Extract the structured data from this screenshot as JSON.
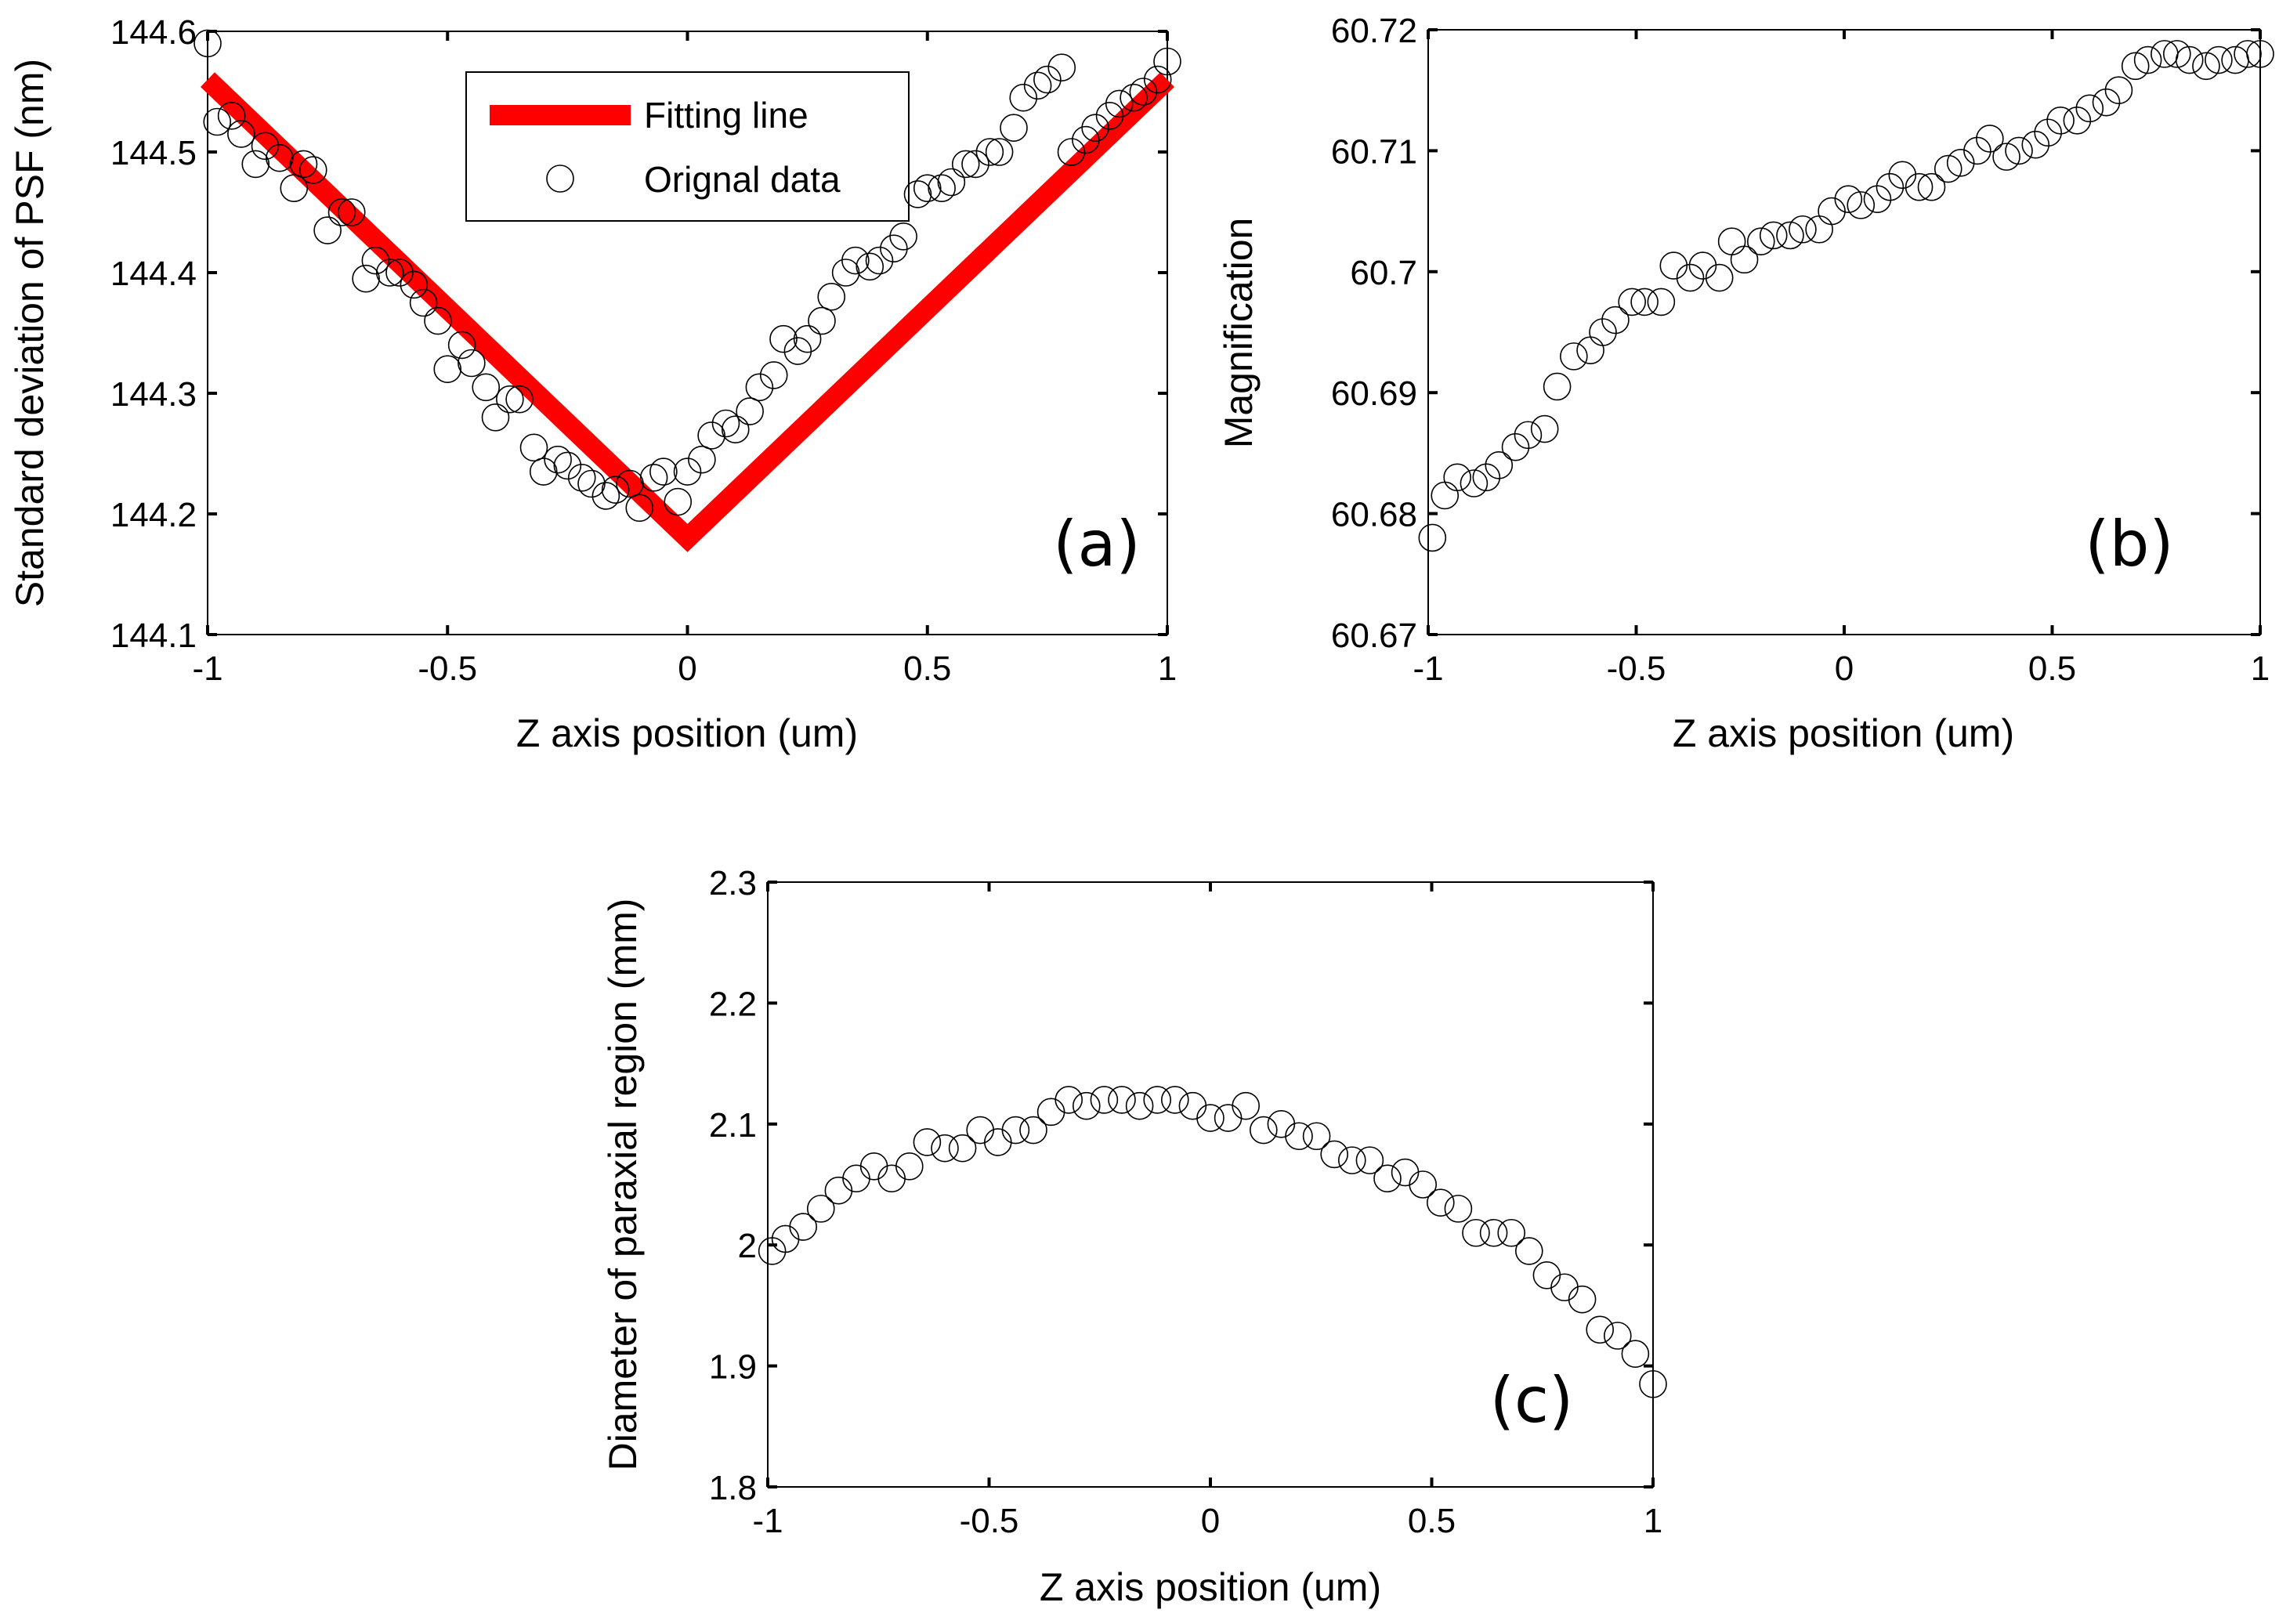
{
  "chart_data": [
    {
      "type": "line+scatter",
      "panel_label": "(a)",
      "xlabel": "Z axis position (um)",
      "ylabel": "Standard deviation of PSF (nm)",
      "xlim": [
        -1,
        1
      ],
      "ylim": [
        144.1,
        144.6
      ],
      "xticks": [
        -1,
        -0.5,
        0,
        0.5,
        1
      ],
      "xtick_labels": [
        "-1",
        "-0.5",
        "0",
        "0.5",
        "1"
      ],
      "yticks": [
        144.1,
        144.2,
        144.3,
        144.4,
        144.5,
        144.6
      ],
      "ytick_labels": [
        "144.1",
        "144.2",
        "144.3",
        "144.4",
        "144.5",
        "144.6"
      ],
      "legend": {
        "position": "top",
        "entries": [
          "Fitting line",
          "Orignal data"
        ]
      },
      "series": [
        {
          "name": "Fitting line",
          "kind": "line",
          "color": "#ff0000",
          "x": [
            -1,
            0,
            1
          ],
          "y": [
            144.56,
            144.18,
            144.56
          ]
        },
        {
          "name": "Orignal data",
          "kind": "scatter",
          "marker": "open-circle",
          "x": [
            -1.0,
            -0.98,
            -0.95,
            -0.93,
            -0.9,
            -0.88,
            -0.85,
            -0.82,
            -0.8,
            -0.78,
            -0.75,
            -0.72,
            -0.7,
            -0.67,
            -0.65,
            -0.62,
            -0.6,
            -0.57,
            -0.55,
            -0.52,
            -0.5,
            -0.47,
            -0.45,
            -0.42,
            -0.4,
            -0.37,
            -0.35,
            -0.32,
            -0.3,
            -0.27,
            -0.25,
            -0.22,
            -0.2,
            -0.17,
            -0.15,
            -0.12,
            -0.1,
            -0.07,
            -0.05,
            -0.02,
            0.0,
            0.03,
            0.05,
            0.08,
            0.1,
            0.13,
            0.15,
            0.18,
            0.2,
            0.23,
            0.25,
            0.28,
            0.3,
            0.33,
            0.35,
            0.38,
            0.4,
            0.43,
            0.45,
            0.48,
            0.5,
            0.53,
            0.55,
            0.58,
            0.6,
            0.63,
            0.65,
            0.68,
            0.7,
            0.73,
            0.75,
            0.78,
            0.8,
            0.83,
            0.85,
            0.88,
            0.9,
            0.93,
            0.95,
            0.98,
            1.0
          ],
          "y": [
            144.59,
            144.525,
            144.53,
            144.515,
            144.49,
            144.505,
            144.495,
            144.47,
            144.49,
            144.485,
            144.435,
            144.45,
            144.45,
            144.395,
            144.41,
            144.4,
            144.4,
            144.39,
            144.375,
            144.36,
            144.32,
            144.34,
            144.325,
            144.305,
            144.28,
            144.295,
            144.295,
            144.255,
            144.235,
            144.245,
            144.24,
            144.23,
            144.225,
            144.215,
            144.22,
            144.225,
            144.205,
            144.23,
            144.235,
            144.21,
            144.235,
            144.245,
            144.265,
            144.275,
            144.27,
            144.285,
            144.305,
            144.315,
            144.345,
            144.335,
            144.345,
            144.36,
            144.38,
            144.4,
            144.41,
            144.405,
            144.41,
            144.42,
            144.43,
            144.465,
            144.47,
            144.47,
            144.475,
            144.49,
            144.49,
            144.5,
            144.5,
            144.52,
            144.545,
            144.555,
            144.56,
            144.57,
            144.5,
            144.51,
            144.52,
            144.53,
            144.54,
            144.545,
            144.55,
            144.56,
            144.575
          ]
        }
      ]
    },
    {
      "type": "scatter",
      "panel_label": "(b)",
      "xlabel": "Z axis position (um)",
      "ylabel": "Magnification",
      "xlim": [
        -1,
        1
      ],
      "ylim": [
        60.67,
        60.72
      ],
      "xticks": [
        -1,
        -0.5,
        0,
        0.5,
        1
      ],
      "xtick_labels": [
        "-1",
        "-0.5",
        "0",
        "0.5",
        "1"
      ],
      "yticks": [
        60.67,
        60.68,
        60.69,
        60.7,
        60.71,
        60.72
      ],
      "ytick_labels": [
        "60.67",
        "60.68",
        "60.69",
        "60.7",
        "60.71",
        "60.72"
      ],
      "series": [
        {
          "name": "Magnification",
          "kind": "scatter",
          "marker": "open-circle",
          "x": [
            -0.99,
            -0.96,
            -0.93,
            -0.89,
            -0.86,
            -0.83,
            -0.79,
            -0.76,
            -0.72,
            -0.69,
            -0.65,
            -0.61,
            -0.58,
            -0.55,
            -0.51,
            -0.48,
            -0.44,
            -0.41,
            -0.37,
            -0.34,
            -0.3,
            -0.27,
            -0.24,
            -0.2,
            -0.17,
            -0.13,
            -0.1,
            -0.06,
            -0.03,
            0.01,
            0.04,
            0.08,
            0.11,
            0.14,
            0.18,
            0.21,
            0.25,
            0.28,
            0.32,
            0.35,
            0.39,
            0.42,
            0.46,
            0.49,
            0.52,
            0.56,
            0.59,
            0.63,
            0.66,
            0.7,
            0.73,
            0.77,
            0.8,
            0.83,
            0.87,
            0.9,
            0.94,
            0.97,
            1.0
          ],
          "y": [
            60.678,
            60.6815,
            60.683,
            60.6825,
            60.683,
            60.684,
            60.6855,
            60.6865,
            60.687,
            60.6905,
            60.693,
            60.6935,
            60.695,
            60.696,
            60.6975,
            60.6975,
            60.6975,
            60.7005,
            60.6995,
            60.7005,
            60.6995,
            60.7025,
            60.701,
            60.7025,
            60.703,
            60.703,
            60.7035,
            60.7035,
            60.705,
            60.706,
            60.7055,
            60.706,
            60.707,
            60.708,
            60.707,
            60.707,
            60.7085,
            60.709,
            60.71,
            60.711,
            60.7095,
            60.71,
            60.7105,
            60.7115,
            60.7125,
            60.7125,
            60.7135,
            60.714,
            60.715,
            60.717,
            60.7175,
            60.718,
            60.718,
            60.7175,
            60.717,
            60.7175,
            60.7175,
            60.718,
            60.718
          ]
        }
      ]
    },
    {
      "type": "scatter",
      "panel_label": "(c)",
      "xlabel": "Z axis position (um)",
      "ylabel": "Diameter of paraxial region (mm)",
      "xlim": [
        -1,
        1
      ],
      "ylim": [
        1.8,
        2.3
      ],
      "xticks": [
        -1,
        -0.5,
        0,
        0.5,
        1
      ],
      "xtick_labels": [
        "-1",
        "-0.5",
        "0",
        "0.5",
        "1"
      ],
      "yticks": [
        1.8,
        1.9,
        2.0,
        2.1,
        2.2,
        2.3
      ],
      "ytick_labels": [
        "1.8",
        "1.9",
        "2",
        "2.1",
        "2.2",
        "2.3"
      ],
      "series": [
        {
          "name": "Diameter",
          "kind": "scatter",
          "marker": "open-circle",
          "x": [
            -0.99,
            -0.96,
            -0.92,
            -0.88,
            -0.84,
            -0.8,
            -0.76,
            -0.72,
            -0.68,
            -0.64,
            -0.6,
            -0.56,
            -0.52,
            -0.48,
            -0.44,
            -0.4,
            -0.36,
            -0.32,
            -0.28,
            -0.24,
            -0.2,
            -0.16,
            -0.12,
            -0.08,
            -0.04,
            0.0,
            0.04,
            0.08,
            0.12,
            0.16,
            0.2,
            0.24,
            0.28,
            0.32,
            0.36,
            0.4,
            0.44,
            0.48,
            0.52,
            0.56,
            0.6,
            0.64,
            0.68,
            0.72,
            0.76,
            0.8,
            0.84,
            0.88,
            0.92,
            0.96,
            1.0
          ],
          "y": [
            1.995,
            2.005,
            2.015,
            2.03,
            2.045,
            2.055,
            2.065,
            2.055,
            2.065,
            2.085,
            2.08,
            2.08,
            2.095,
            2.085,
            2.095,
            2.095,
            2.11,
            2.12,
            2.115,
            2.12,
            2.12,
            2.115,
            2.12,
            2.12,
            2.115,
            2.105,
            2.105,
            2.115,
            2.095,
            2.1,
            2.09,
            2.09,
            2.075,
            2.07,
            2.07,
            2.055,
            2.06,
            2.05,
            2.035,
            2.03,
            2.01,
            2.01,
            2.01,
            1.995,
            1.975,
            1.965,
            1.955,
            1.93,
            1.925,
            1.91,
            1.885
          ]
        }
      ]
    }
  ]
}
